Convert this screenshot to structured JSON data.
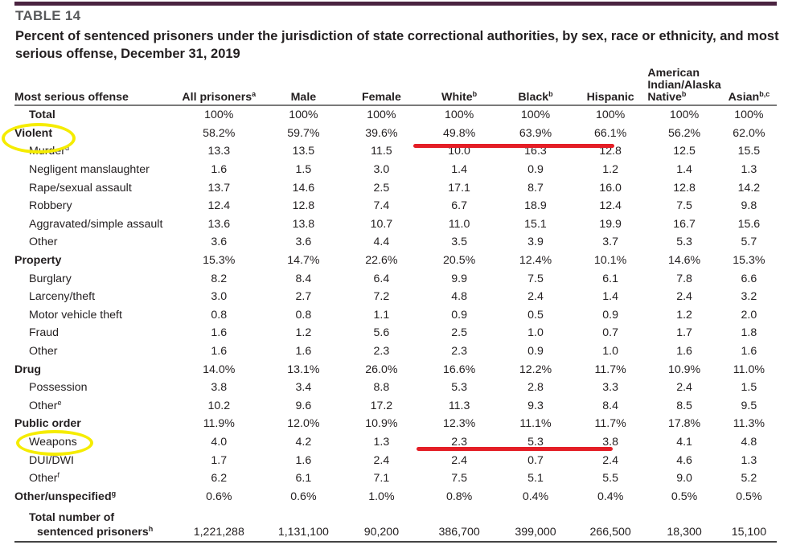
{
  "header": {
    "table_label": "TABLE 14",
    "title": "Percent of sentenced prisoners under the jurisdiction of state correctional authorities, by sex, race or ethnicity, and most serious offense, December 31, 2019"
  },
  "columns": [
    {
      "label": "Most serious offense",
      "sup": ""
    },
    {
      "label": "All prisoners",
      "sup": "a"
    },
    {
      "label": "Male",
      "sup": ""
    },
    {
      "label": "Female",
      "sup": ""
    },
    {
      "label": "White",
      "sup": "b"
    },
    {
      "label": "Black",
      "sup": "b"
    },
    {
      "label": "Hispanic",
      "sup": ""
    },
    {
      "label": "American Indian/Alaska Native",
      "sup": "b"
    },
    {
      "label": "Asian",
      "sup": "b,c"
    }
  ],
  "rows": [
    {
      "label": "Total",
      "sup": "",
      "level": "total",
      "values": [
        "100%",
        "100%",
        "100%",
        "100%",
        "100%",
        "100%",
        "100%",
        "100%"
      ]
    },
    {
      "label": "Violent",
      "sup": "",
      "level": "category",
      "values": [
        "58.2%",
        "59.7%",
        "39.6%",
        "49.8%",
        "63.9%",
        "66.1%",
        "56.2%",
        "62.0%"
      ]
    },
    {
      "label": "Murder",
      "sup": "d",
      "level": "sub",
      "values": [
        "13.3",
        "13.5",
        "11.5",
        "10.0",
        "16.3",
        "12.8",
        "12.5",
        "15.5"
      ]
    },
    {
      "label": "Negligent manslaughter",
      "sup": "",
      "level": "sub",
      "values": [
        "1.6",
        "1.5",
        "3.0",
        "1.4",
        "0.9",
        "1.2",
        "1.4",
        "1.3"
      ]
    },
    {
      "label": "Rape/sexual assault",
      "sup": "",
      "level": "sub",
      "values": [
        "13.7",
        "14.6",
        "2.5",
        "17.1",
        "8.7",
        "16.0",
        "12.8",
        "14.2"
      ]
    },
    {
      "label": "Robbery",
      "sup": "",
      "level": "sub",
      "values": [
        "12.4",
        "12.8",
        "7.4",
        "6.7",
        "18.9",
        "12.4",
        "7.5",
        "9.8"
      ]
    },
    {
      "label": "Aggravated/simple assault",
      "sup": "",
      "level": "sub",
      "values": [
        "13.6",
        "13.8",
        "10.7",
        "11.0",
        "15.1",
        "19.9",
        "16.7",
        "15.6"
      ]
    },
    {
      "label": "Other",
      "sup": "",
      "level": "sub",
      "values": [
        "3.6",
        "3.6",
        "4.4",
        "3.5",
        "3.9",
        "3.7",
        "5.3",
        "5.7"
      ]
    },
    {
      "label": "Property",
      "sup": "",
      "level": "category",
      "values": [
        "15.3%",
        "14.7%",
        "22.6%",
        "20.5%",
        "12.4%",
        "10.1%",
        "14.6%",
        "15.3%"
      ]
    },
    {
      "label": "Burglary",
      "sup": "",
      "level": "sub",
      "values": [
        "8.2",
        "8.4",
        "6.4",
        "9.9",
        "7.5",
        "6.1",
        "7.8",
        "6.6"
      ]
    },
    {
      "label": "Larceny/theft",
      "sup": "",
      "level": "sub",
      "values": [
        "3.0",
        "2.7",
        "7.2",
        "4.8",
        "2.4",
        "1.4",
        "2.4",
        "3.2"
      ]
    },
    {
      "label": "Motor vehicle theft",
      "sup": "",
      "level": "sub",
      "values": [
        "0.8",
        "0.8",
        "1.1",
        "0.9",
        "0.5",
        "0.9",
        "1.2",
        "2.0"
      ]
    },
    {
      "label": "Fraud",
      "sup": "",
      "level": "sub",
      "values": [
        "1.6",
        "1.2",
        "5.6",
        "2.5",
        "1.0",
        "0.7",
        "1.7",
        "1.8"
      ]
    },
    {
      "label": "Other",
      "sup": "",
      "level": "sub",
      "values": [
        "1.6",
        "1.6",
        "2.3",
        "2.3",
        "0.9",
        "1.0",
        "1.6",
        "1.6"
      ]
    },
    {
      "label": "Drug",
      "sup": "",
      "level": "category",
      "values": [
        "14.0%",
        "13.1%",
        "26.0%",
        "16.6%",
        "12.2%",
        "11.7%",
        "10.9%",
        "11.0%"
      ]
    },
    {
      "label": "Possession",
      "sup": "",
      "level": "sub",
      "values": [
        "3.8",
        "3.4",
        "8.8",
        "5.3",
        "2.8",
        "3.3",
        "2.4",
        "1.5"
      ]
    },
    {
      "label": "Other",
      "sup": "e",
      "level": "sub",
      "values": [
        "10.2",
        "9.6",
        "17.2",
        "11.3",
        "9.3",
        "8.4",
        "8.5",
        "9.5"
      ]
    },
    {
      "label": "Public order",
      "sup": "",
      "level": "category",
      "values": [
        "11.9%",
        "12.0%",
        "10.9%",
        "12.3%",
        "11.1%",
        "11.7%",
        "17.8%",
        "11.3%"
      ]
    },
    {
      "label": "Weapons",
      "sup": "",
      "level": "sub",
      "values": [
        "4.0",
        "4.2",
        "1.3",
        "2.3",
        "5.3",
        "3.8",
        "4.1",
        "4.8"
      ]
    },
    {
      "label": "DUI/DWI",
      "sup": "",
      "level": "sub",
      "values": [
        "1.7",
        "1.6",
        "2.4",
        "2.4",
        "0.7",
        "2.4",
        "4.6",
        "1.3"
      ]
    },
    {
      "label": "Other",
      "sup": "f",
      "level": "sub",
      "values": [
        "6.2",
        "6.1",
        "7.1",
        "7.5",
        "5.1",
        "5.5",
        "9.0",
        "5.2"
      ]
    },
    {
      "label": "Other/unspecified",
      "sup": "g",
      "level": "category",
      "values": [
        "0.6%",
        "0.6%",
        "1.0%",
        "0.8%",
        "0.4%",
        "0.4%",
        "0.5%",
        "0.5%"
      ]
    }
  ],
  "total_row": {
    "label_line1": "Total number of",
    "label_line2": "sentenced prisoners",
    "sup": "h",
    "values": [
      "1,221,288",
      "1,131,100",
      "90,200",
      "386,700",
      "399,000",
      "266,500",
      "18,300",
      "15,100"
    ]
  },
  "annotations": {
    "ellipse_color": "#f5ec00",
    "underline_color": "#e41e26",
    "circled_labels": [
      "Violent",
      "Weapons"
    ],
    "underlined": [
      "Violent: White, Black, Hispanic",
      "Weapons: White, Black, Hispanic"
    ]
  }
}
